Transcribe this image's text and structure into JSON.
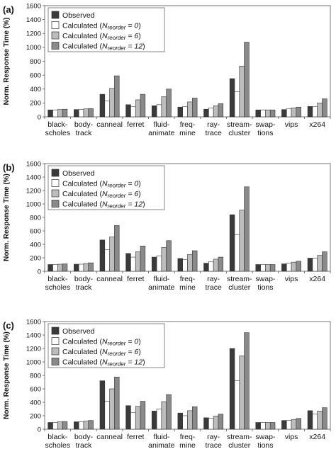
{
  "chart_data": [
    {
      "type": "bar",
      "panel_label": "(a)",
      "ylabel": "Norm. Response Time (%)",
      "ylim": [
        0,
        1600
      ],
      "yticks": [
        0,
        200,
        400,
        600,
        800,
        1000,
        1200,
        1400,
        1600
      ],
      "categories": [
        [
          "black-",
          "scholes"
        ],
        [
          "body-",
          "track"
        ],
        [
          "canneal"
        ],
        [
          "ferret"
        ],
        [
          "fluid-",
          "animate"
        ],
        [
          "freq-",
          "mine"
        ],
        [
          "ray-",
          "trace"
        ],
        [
          "stream-",
          "cluster"
        ],
        [
          "swap-",
          "tions"
        ],
        [
          "vips"
        ],
        [
          "x264"
        ]
      ],
      "series": [
        {
          "name": "Observed",
          "nreorder": "",
          "color": "#3a3a3a",
          "values": [
            100,
            105,
            325,
            175,
            160,
            140,
            110,
            550,
            100,
            105,
            150
          ]
        },
        {
          "name": "Calculated (",
          "nreorder": "0",
          "color": "#ffffff",
          "values": [
            100,
            105,
            230,
            150,
            175,
            150,
            130,
            360,
            100,
            115,
            150
          ]
        },
        {
          "name": "Calculated (",
          "nreorder": "6",
          "color": "#bdbdbd",
          "values": [
            105,
            115,
            410,
            245,
            290,
            215,
            160,
            730,
            100,
            130,
            200
          ]
        },
        {
          "name": "Calculated (",
          "nreorder": "12",
          "color": "#8a8a8a",
          "values": [
            110,
            120,
            590,
            325,
            400,
            270,
            190,
            1075,
            100,
            140,
            260
          ]
        }
      ]
    },
    {
      "type": "bar",
      "panel_label": "(b)",
      "ylabel": "Norm. Response Time (%)",
      "ylim": [
        0,
        1600
      ],
      "yticks": [
        0,
        200,
        400,
        600,
        800,
        1000,
        1200,
        1400,
        1600
      ],
      "categories": [
        [
          "black-",
          "scholes"
        ],
        [
          "body-",
          "track"
        ],
        [
          "canneal"
        ],
        [
          "ferret"
        ],
        [
          "fluid-",
          "animate"
        ],
        [
          "freq-",
          "mine"
        ],
        [
          "ray-",
          "trace"
        ],
        [
          "stream-",
          "cluster"
        ],
        [
          "swap-",
          "tions"
        ],
        [
          "vips"
        ],
        [
          "x264"
        ]
      ],
      "series": [
        {
          "name": "Observed",
          "nreorder": "",
          "color": "#3a3a3a",
          "values": [
            100,
            105,
            465,
            265,
            210,
            190,
            120,
            840,
            100,
            110,
            195
          ]
        },
        {
          "name": "Calculated (",
          "nreorder": "0",
          "color": "#ffffff",
          "values": [
            100,
            105,
            320,
            210,
            230,
            175,
            145,
            540,
            100,
            120,
            195
          ]
        },
        {
          "name": "Calculated (",
          "nreorder": "6",
          "color": "#bdbdbd",
          "values": [
            105,
            115,
            510,
            290,
            355,
            250,
            180,
            910,
            100,
            135,
            235
          ]
        },
        {
          "name": "Calculated (",
          "nreorder": "12",
          "color": "#8a8a8a",
          "values": [
            110,
            125,
            680,
            375,
            455,
            305,
            210,
            1255,
            100,
            150,
            290
          ]
        }
      ]
    },
    {
      "type": "bar",
      "panel_label": "(c)",
      "ylabel": "Norm. Response Time (%)",
      "ylim": [
        0,
        1600
      ],
      "yticks": [
        0,
        200,
        400,
        600,
        800,
        1000,
        1200,
        1400,
        1600
      ],
      "categories": [
        [
          "black-",
          "scholes"
        ],
        [
          "body-",
          "track"
        ],
        [
          "canneal"
        ],
        [
          "ferret"
        ],
        [
          "fluid-",
          "animate"
        ],
        [
          "freq-",
          "mine"
        ],
        [
          "ray-",
          "trace"
        ],
        [
          "stream-",
          "cluster"
        ],
        [
          "swap-",
          "tions"
        ],
        [
          "vips"
        ],
        [
          "x264"
        ]
      ],
      "series": [
        {
          "name": "Observed",
          "nreorder": "",
          "color": "#3a3a3a",
          "values": [
            100,
            110,
            720,
            350,
            270,
            240,
            170,
            1200,
            100,
            130,
            275
          ]
        },
        {
          "name": "Calculated (",
          "nreorder": "0",
          "color": "#ffffff",
          "values": [
            100,
            110,
            415,
            245,
            300,
            200,
            160,
            720,
            100,
            130,
            225
          ]
        },
        {
          "name": "Calculated (",
          "nreorder": "6",
          "color": "#bdbdbd",
          "values": [
            110,
            120,
            600,
            340,
            410,
            275,
            195,
            1090,
            100,
            145,
            270
          ]
        },
        {
          "name": "Calculated (",
          "nreorder": "12",
          "color": "#8a8a8a",
          "values": [
            115,
            130,
            775,
            415,
            515,
            335,
            225,
            1435,
            100,
            160,
            320
          ]
        }
      ]
    }
  ],
  "legend": {
    "placement": "top-left",
    "nreorder_symbol": "N",
    "nreorder_subscript": "reorder",
    "eq": " = ",
    "close": ")"
  }
}
